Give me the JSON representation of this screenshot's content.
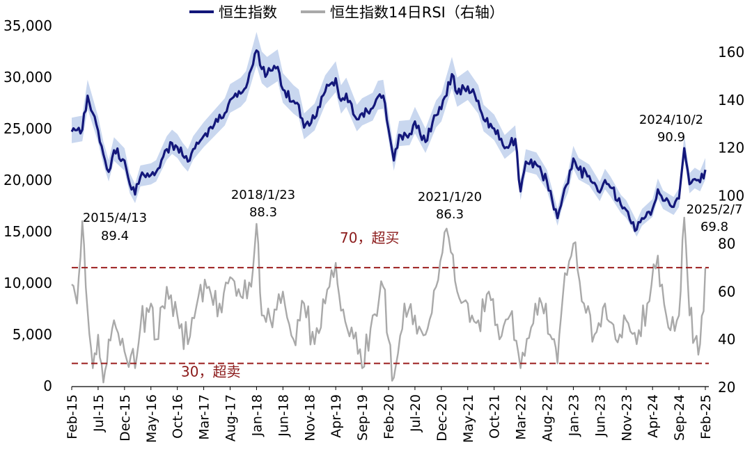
{
  "chart_data": {
    "type": "line",
    "title": "",
    "xlabel": "",
    "ylabel": "",
    "legend_position": "top-center",
    "grid": false,
    "colors": {
      "hsi": "#13177a",
      "hsi_band": "#c9d7ef",
      "rsi": "#a9a9a9",
      "threshold": "#9b1c1c",
      "threshold_text": "#8b1a1a"
    },
    "x_tick_labels": [
      "Feb-15",
      "Jul-15",
      "Dec-15",
      "May-16",
      "Oct-16",
      "Mar-17",
      "Aug-17",
      "Jan-18",
      "Jun-18",
      "Nov-18",
      "Apr-19",
      "Sep-19",
      "Feb-20",
      "Jul-20",
      "Dec-20",
      "May-21",
      "Oct-21",
      "Mar-22",
      "Aug-22",
      "Jan-23",
      "Jun-23",
      "Nov-23",
      "Apr-24",
      "Sep-24",
      "Feb-25"
    ],
    "x_range": [
      "2015-02",
      "2025-02"
    ],
    "y_left": {
      "min": 0,
      "max": 35000,
      "ticks": [
        0,
        5000,
        10000,
        15000,
        20000,
        25000,
        30000,
        35000
      ],
      "tick_labels": [
        "0",
        "5,000",
        "10,000",
        "15,000",
        "20,000",
        "25,000",
        "30,000",
        "35,000"
      ]
    },
    "y_right": {
      "min": 20,
      "max": 160,
      "ticks": [
        20,
        40,
        60,
        80,
        100,
        120,
        140,
        160
      ],
      "tick_labels": [
        "20",
        "40",
        "60",
        "80",
        "100",
        "120",
        "140",
        "160"
      ]
    },
    "series": [
      {
        "name": "恒生指数",
        "axis": "left",
        "x": [
          "2015-02",
          "2015-04",
          "2015-05",
          "2015-07",
          "2015-08",
          "2015-09",
          "2015-10",
          "2015-12",
          "2016-01",
          "2016-02",
          "2016-03",
          "2016-05",
          "2016-06",
          "2016-08",
          "2016-09",
          "2016-10",
          "2016-11",
          "2016-12",
          "2017-01",
          "2017-03",
          "2017-05",
          "2017-07",
          "2017-08",
          "2017-10",
          "2017-11",
          "2018-01",
          "2018-02",
          "2018-03",
          "2018-05",
          "2018-06",
          "2018-08",
          "2018-09",
          "2018-10",
          "2018-12",
          "2019-02",
          "2019-04",
          "2019-05",
          "2019-06",
          "2019-08",
          "2019-09",
          "2019-11",
          "2019-12",
          "2020-01",
          "2020-03",
          "2020-04",
          "2020-06",
          "2020-07",
          "2020-09",
          "2020-11",
          "2020-12",
          "2021-02",
          "2021-03",
          "2021-05",
          "2021-07",
          "2021-08",
          "2021-10",
          "2021-12",
          "2022-02",
          "2022-03",
          "2022-04",
          "2022-06",
          "2022-08",
          "2022-10",
          "2022-11",
          "2022-12",
          "2023-01",
          "2023-02",
          "2023-04",
          "2023-06",
          "2023-07",
          "2023-08",
          "2023-10",
          "2023-11",
          "2024-01",
          "2024-02",
          "2024-04",
          "2024-05",
          "2024-06",
          "2024-08",
          "2024-09",
          "2024-10",
          "2024-11",
          "2024-12",
          "2025-01",
          "2025-02"
        ],
        "values": [
          24700,
          24900,
          28200,
          24800,
          22500,
          20800,
          22900,
          21900,
          19600,
          18600,
          20300,
          20500,
          20800,
          23000,
          23600,
          23200,
          22400,
          21800,
          23000,
          24300,
          25400,
          26500,
          27800,
          28400,
          29000,
          32600,
          30800,
          30300,
          31000,
          28800,
          27700,
          27300,
          25100,
          26000,
          28600,
          29900,
          27700,
          28400,
          25900,
          26500,
          27000,
          28100,
          28200,
          21900,
          24400,
          24500,
          25700,
          23700,
          26300,
          26900,
          30300,
          28400,
          29100,
          27700,
          25900,
          25000,
          23100,
          24000,
          18900,
          21800,
          21500,
          19900,
          16300,
          18400,
          19700,
          22100,
          21000,
          20400,
          18800,
          20000,
          19300,
          17600,
          17100,
          15200,
          16300,
          17200,
          19100,
          18000,
          17400,
          18200,
          23100,
          19600,
          20100,
          19800,
          21000
        ]
      },
      {
        "name": "恒生指数14日RSI（右轴）",
        "axis": "right",
        "x": [
          "2015-02",
          "2015-03",
          "2015-04",
          "2015-05",
          "2015-06",
          "2015-07",
          "2015-08",
          "2015-09",
          "2015-10",
          "2015-12",
          "2016-02",
          "2016-03",
          "2016-05",
          "2016-06",
          "2016-08",
          "2016-10",
          "2016-12",
          "2017-02",
          "2017-04",
          "2017-06",
          "2017-08",
          "2017-10",
          "2017-12",
          "2018-01",
          "2018-02",
          "2018-04",
          "2018-06",
          "2018-08",
          "2018-10",
          "2018-12",
          "2019-02",
          "2019-04",
          "2019-05",
          "2019-07",
          "2019-09",
          "2019-11",
          "2020-01",
          "2020-02",
          "2020-03",
          "2020-05",
          "2020-07",
          "2020-09",
          "2020-11",
          "2021-01",
          "2021-03",
          "2021-05",
          "2021-07",
          "2021-09",
          "2021-11",
          "2022-01",
          "2022-03",
          "2022-05",
          "2022-07",
          "2022-09",
          "2022-10",
          "2022-11",
          "2023-01",
          "2023-03",
          "2023-05",
          "2023-07",
          "2023-09",
          "2023-11",
          "2024-01",
          "2024-03",
          "2024-05",
          "2024-07",
          "2024-09",
          "2024-10",
          "2024-11",
          "2024-12",
          "2025-01",
          "2025-02"
        ],
        "values": [
          63,
          55,
          89.4,
          52,
          28,
          42,
          22,
          40,
          48,
          35,
          28,
          45,
          55,
          40,
          62,
          50,
          38,
          58,
          62,
          55,
          66,
          58,
          62,
          88.3,
          50,
          45,
          60,
          40,
          55,
          38,
          55,
          72,
          52,
          45,
          28,
          50,
          62,
          40,
          24,
          55,
          50,
          42,
          62,
          86.3,
          60,
          55,
          48,
          60,
          40,
          50,
          28,
          45,
          55,
          40,
          30,
          58,
          80,
          55,
          42,
          55,
          40,
          48,
          38,
          55,
          75,
          45,
          50,
          90.9,
          50,
          40,
          38,
          69.8
        ]
      }
    ],
    "threshold_lines": [
      {
        "value": 70,
        "axis": "right",
        "label": "70，超买"
      },
      {
        "value": 30,
        "axis": "right",
        "label": "30，超卖"
      }
    ],
    "annotations": [
      {
        "date_label": "2015/4/13",
        "value_label": "89.4",
        "x": "2015-04",
        "y": 89.4
      },
      {
        "date_label": "2018/1/23",
        "value_label": "88.3",
        "x": "2018-01",
        "y": 88.3
      },
      {
        "date_label": "2021/1/20",
        "value_label": "86.3",
        "x": "2021-01",
        "y": 86.3
      },
      {
        "date_label": "2024/10/2",
        "value_label": "90.9",
        "x": "2024-10",
        "y": 90.9
      },
      {
        "date_label": "2025/2/7",
        "value_label": "69.8",
        "x": "2025-02",
        "y": 69.8
      }
    ]
  }
}
